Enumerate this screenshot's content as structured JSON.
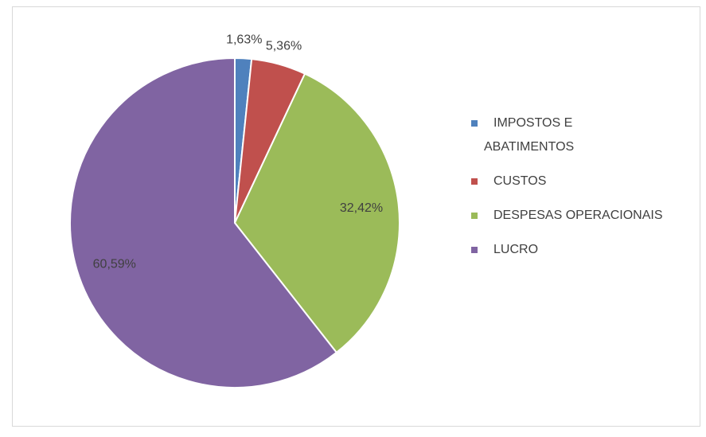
{
  "chart_data": {
    "type": "pie",
    "categories": [
      "IMPOSTOS E ABATIMENTOS",
      "CUSTOS",
      "DESPESAS OPERACIONAIS",
      "LUCRO"
    ],
    "values": [
      1.63,
      5.36,
      32.42,
      60.59
    ],
    "value_labels": [
      "1,63%",
      "5,36%",
      "32,42%",
      "60,59%"
    ],
    "colors": [
      "#4f81bd",
      "#c0504d",
      "#9bbb59",
      "#8064a2"
    ],
    "legend": "right"
  }
}
